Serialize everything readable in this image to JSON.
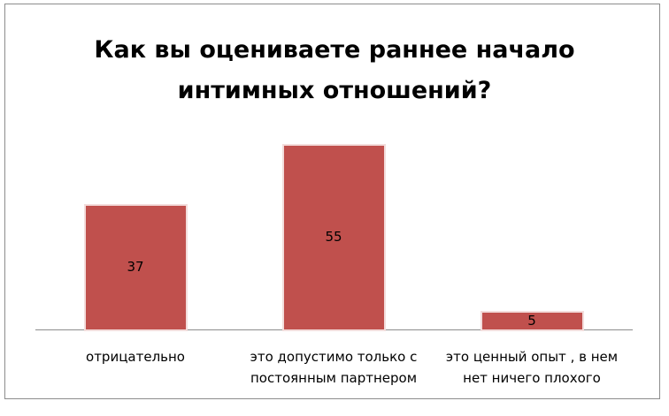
{
  "chart_data": {
    "type": "bar",
    "title": "Как вы оцениваете раннее начало интимных отношений?",
    "categories": [
      "отрицательно",
      "это допустимо только с постоянным партнером",
      "это ценный опыт , в нем нет ничего плохого"
    ],
    "values": [
      37,
      55,
      5
    ],
    "color": "#c0504d"
  }
}
